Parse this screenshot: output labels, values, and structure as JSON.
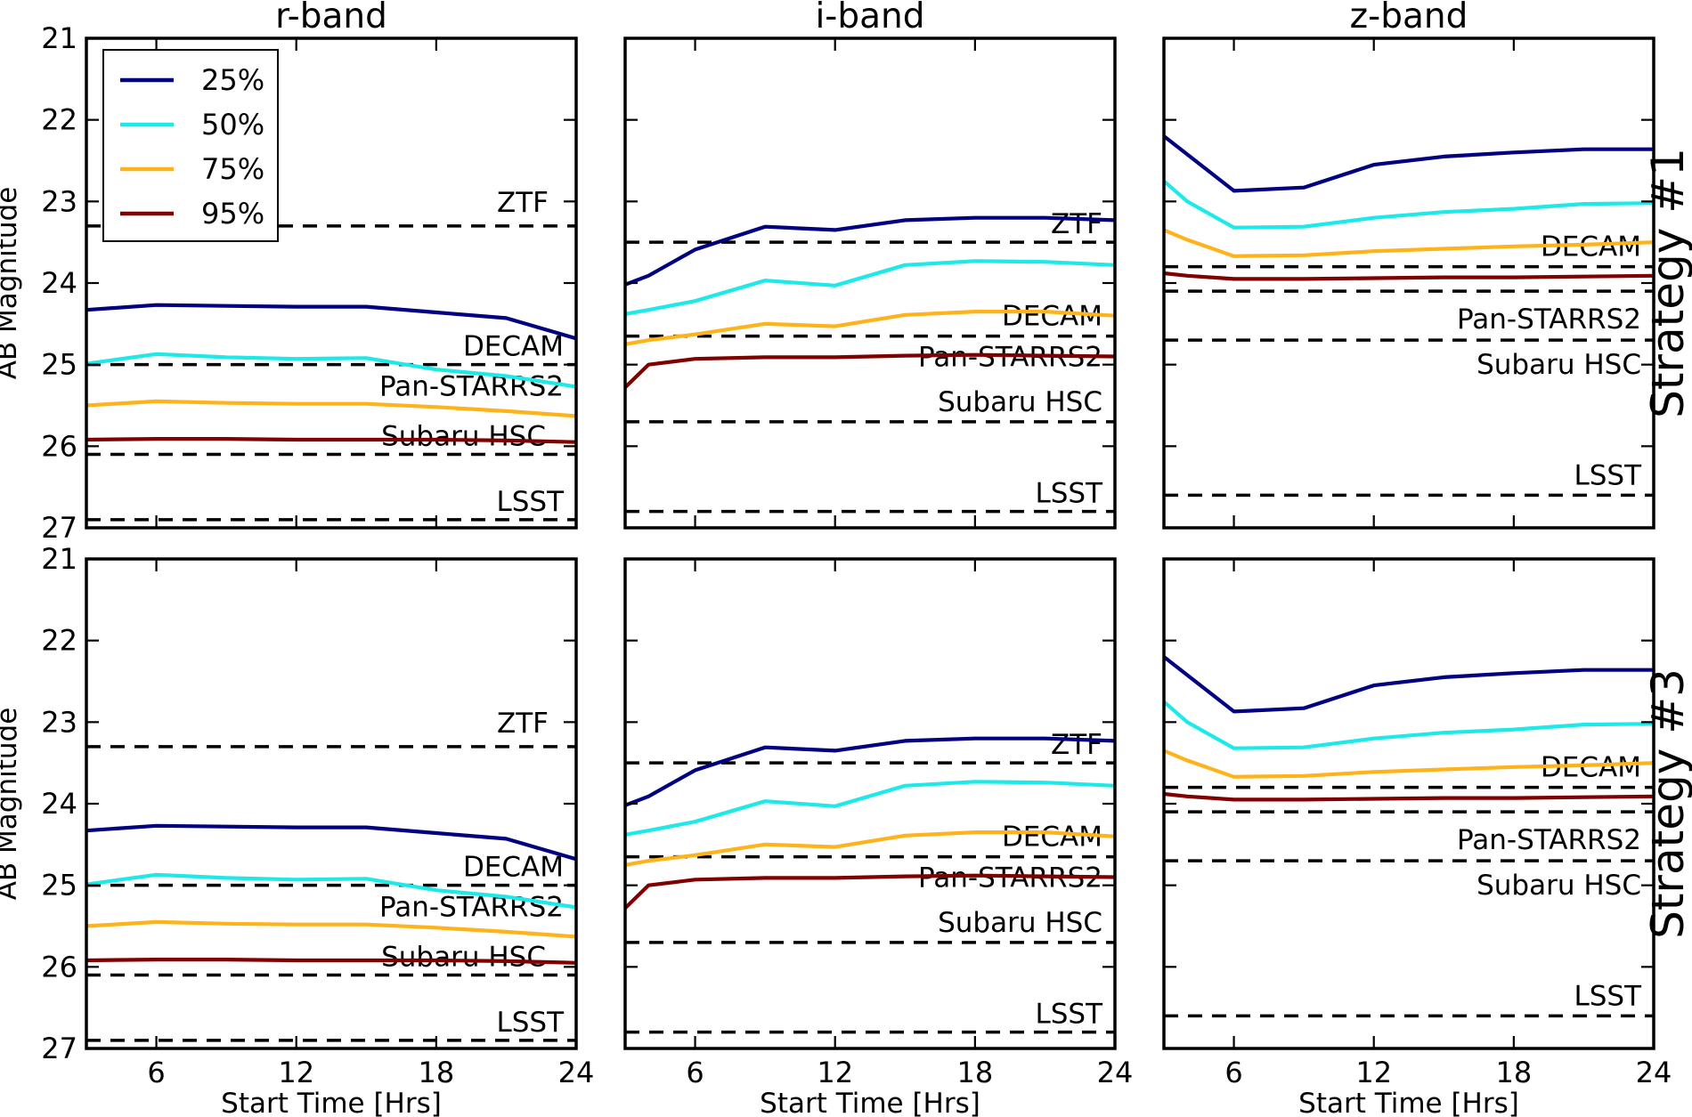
{
  "chart_data": {
    "type": "line",
    "x_unit_label": "Start Time [Hrs]",
    "y_label": "AB Magnitude",
    "xlim": [
      3,
      24
    ],
    "ylim": [
      21,
      27
    ],
    "y_inverted": true,
    "xticks": [
      6,
      12,
      18,
      24
    ],
    "yticks": [
      21,
      22,
      23,
      24,
      25,
      26,
      27
    ],
    "grid": false,
    "legend_placement": "top-left of first panel",
    "series_meta": [
      {
        "name": "25%",
        "color": "#000080"
      },
      {
        "name": "50%",
        "color": "#1de9e9"
      },
      {
        "name": "75%",
        "color": "#ffb31a"
      },
      {
        "name": "95%",
        "color": "#800000"
      }
    ],
    "columns": [
      "r-band",
      "i-band",
      "z-band"
    ],
    "rows": [
      "Strategy #1",
      "Strategy #3"
    ],
    "panels": [
      {
        "band": "r-band",
        "strategy": "Strategy #1",
        "series": [
          {
            "x": [
              3,
              6,
              9,
              12,
              15,
              18,
              21,
              24
            ],
            "y": [
              24.33,
              24.27,
              24.28,
              24.29,
              24.29,
              24.36,
              24.43,
              24.68
            ]
          },
          {
            "x": [
              3,
              6,
              9,
              12,
              15,
              18,
              21,
              24
            ],
            "y": [
              24.99,
              24.87,
              24.91,
              24.93,
              24.92,
              25.06,
              25.14,
              25.27
            ]
          },
          {
            "x": [
              3,
              6,
              9,
              12,
              15,
              18,
              21,
              24
            ],
            "y": [
              25.5,
              25.45,
              25.47,
              25.48,
              25.48,
              25.52,
              25.57,
              25.63
            ]
          },
          {
            "x": [
              3,
              6,
              9,
              12,
              15,
              18,
              21,
              24
            ],
            "y": [
              25.92,
              25.91,
              25.91,
              25.92,
              25.92,
              25.92,
              25.93,
              25.95
            ]
          }
        ],
        "reference_lines": [
          {
            "label": "ZTF",
            "y": 23.3
          },
          {
            "label": "DECAM",
            "y": 25.0
          },
          {
            "label": "Pan-STARRS2",
            "y": 25.0,
            "label_only": true
          },
          {
            "label": "Subaru HSC",
            "y": 26.1
          },
          {
            "label": "LSST",
            "y": 26.9
          }
        ]
      },
      {
        "band": "i-band",
        "strategy": "Strategy #1",
        "series": [
          {
            "x": [
              3,
              4,
              6,
              9,
              12,
              15,
              18,
              21,
              24
            ],
            "y": [
              24.02,
              23.91,
              23.59,
              23.31,
              23.35,
              23.23,
              23.2,
              23.2,
              23.23
            ]
          },
          {
            "x": [
              3,
              4,
              6,
              9,
              12,
              15,
              18,
              21,
              24
            ],
            "y": [
              24.38,
              24.33,
              24.22,
              23.97,
              24.03,
              23.78,
              23.73,
              23.74,
              23.78
            ]
          },
          {
            "x": [
              3,
              4,
              6,
              9,
              12,
              15,
              18,
              21,
              24
            ],
            "y": [
              24.75,
              24.7,
              24.63,
              24.5,
              24.53,
              24.39,
              24.35,
              24.35,
              24.4
            ]
          },
          {
            "x": [
              3,
              4,
              6,
              9,
              12,
              15,
              18,
              21,
              24
            ],
            "y": [
              25.28,
              25.0,
              24.93,
              24.91,
              24.91,
              24.89,
              24.88,
              24.89,
              24.9
            ]
          }
        ],
        "reference_lines": [
          {
            "label": "ZTF",
            "y": 23.5
          },
          {
            "label": "DECAM",
            "y": 24.65
          },
          {
            "label": "Pan-STARRS2",
            "y": 24.65,
            "label_only": true
          },
          {
            "label": "Subaru HSC",
            "y": 25.7
          },
          {
            "label": "LSST",
            "y": 26.8
          }
        ]
      },
      {
        "band": "z-band",
        "strategy": "Strategy #1",
        "series": [
          {
            "x": [
              3,
              6,
              9,
              12,
              15,
              18,
              21,
              24
            ],
            "y": [
              22.2,
              22.87,
              22.83,
              22.55,
              22.45,
              22.4,
              22.36,
              22.36
            ]
          },
          {
            "x": [
              3,
              4,
              6,
              9,
              12,
              15,
              18,
              21,
              24
            ],
            "y": [
              22.75,
              23.0,
              23.32,
              23.31,
              23.2,
              23.13,
              23.09,
              23.03,
              23.02
            ]
          },
          {
            "x": [
              3,
              4,
              6,
              9,
              12,
              15,
              18,
              21,
              24
            ],
            "y": [
              23.35,
              23.47,
              23.67,
              23.66,
              23.61,
              23.58,
              23.55,
              23.53,
              23.5
            ]
          },
          {
            "x": [
              3,
              4,
              6,
              9,
              12,
              15,
              18,
              21,
              24
            ],
            "y": [
              23.88,
              23.91,
              23.95,
              23.95,
              23.94,
              23.93,
              23.93,
              23.92,
              23.91
            ]
          }
        ],
        "reference_lines": [
          {
            "label": "DECAM",
            "y": 23.8
          },
          {
            "label": "Pan-STARRS2",
            "y": 24.1
          },
          {
            "label": "Subaru HSC",
            "y": 24.7
          },
          {
            "label": "LSST",
            "y": 26.6
          }
        ]
      },
      {
        "band": "r-band",
        "strategy": "Strategy #3",
        "series": [
          {
            "x": [
              3,
              6,
              9,
              12,
              15,
              18,
              21,
              24
            ],
            "y": [
              24.33,
              24.27,
              24.28,
              24.29,
              24.29,
              24.36,
              24.43,
              24.68
            ]
          },
          {
            "x": [
              3,
              6,
              9,
              12,
              15,
              18,
              21,
              24
            ],
            "y": [
              24.99,
              24.87,
              24.91,
              24.93,
              24.92,
              25.06,
              25.14,
              25.27
            ]
          },
          {
            "x": [
              3,
              6,
              9,
              12,
              15,
              18,
              21,
              24
            ],
            "y": [
              25.5,
              25.45,
              25.47,
              25.48,
              25.48,
              25.52,
              25.57,
              25.63
            ]
          },
          {
            "x": [
              3,
              6,
              9,
              12,
              15,
              18,
              21,
              24
            ],
            "y": [
              25.92,
              25.91,
              25.91,
              25.92,
              25.92,
              25.92,
              25.93,
              25.95
            ]
          }
        ],
        "reference_lines": [
          {
            "label": "ZTF",
            "y": 23.3
          },
          {
            "label": "DECAM",
            "y": 25.0
          },
          {
            "label": "Pan-STARRS2",
            "y": 25.0,
            "label_only": true
          },
          {
            "label": "Subaru HSC",
            "y": 26.1
          },
          {
            "label": "LSST",
            "y": 26.9
          }
        ]
      },
      {
        "band": "i-band",
        "strategy": "Strategy #3",
        "series": [
          {
            "x": [
              3,
              4,
              6,
              9,
              12,
              15,
              18,
              21,
              24
            ],
            "y": [
              24.02,
              23.91,
              23.59,
              23.31,
              23.35,
              23.23,
              23.2,
              23.2,
              23.23
            ]
          },
          {
            "x": [
              3,
              4,
              6,
              9,
              12,
              15,
              18,
              21,
              24
            ],
            "y": [
              24.38,
              24.33,
              24.22,
              23.97,
              24.03,
              23.78,
              23.73,
              23.74,
              23.78
            ]
          },
          {
            "x": [
              3,
              4,
              6,
              9,
              12,
              15,
              18,
              21,
              24
            ],
            "y": [
              24.75,
              24.7,
              24.63,
              24.5,
              24.53,
              24.39,
              24.35,
              24.35,
              24.4
            ]
          },
          {
            "x": [
              3,
              4,
              6,
              9,
              12,
              15,
              18,
              21,
              24
            ],
            "y": [
              25.28,
              25.0,
              24.93,
              24.91,
              24.91,
              24.89,
              24.88,
              24.89,
              24.9
            ]
          }
        ],
        "reference_lines": [
          {
            "label": "ZTF",
            "y": 23.5
          },
          {
            "label": "DECAM",
            "y": 24.65
          },
          {
            "label": "Pan-STARRS2",
            "y": 24.65,
            "label_only": true
          },
          {
            "label": "Subaru HSC",
            "y": 25.7
          },
          {
            "label": "LSST",
            "y": 26.8
          }
        ]
      },
      {
        "band": "z-band",
        "strategy": "Strategy #3",
        "series": [
          {
            "x": [
              3,
              6,
              9,
              12,
              15,
              18,
              21,
              24
            ],
            "y": [
              22.2,
              22.87,
              22.83,
              22.55,
              22.45,
              22.4,
              22.36,
              22.36
            ]
          },
          {
            "x": [
              3,
              4,
              6,
              9,
              12,
              15,
              18,
              21,
              24
            ],
            "y": [
              22.75,
              23.0,
              23.32,
              23.31,
              23.2,
              23.13,
              23.09,
              23.03,
              23.02
            ]
          },
          {
            "x": [
              3,
              4,
              6,
              9,
              12,
              15,
              18,
              21,
              24
            ],
            "y": [
              23.35,
              23.47,
              23.67,
              23.66,
              23.61,
              23.58,
              23.55,
              23.53,
              23.5
            ]
          },
          {
            "x": [
              3,
              4,
              6,
              9,
              12,
              15,
              18,
              21,
              24
            ],
            "y": [
              23.88,
              23.91,
              23.95,
              23.95,
              23.94,
              23.93,
              23.93,
              23.92,
              23.91
            ]
          }
        ],
        "reference_lines": [
          {
            "label": "DECAM",
            "y": 23.8
          },
          {
            "label": "Pan-STARRS2",
            "y": 24.1
          },
          {
            "label": "Subaru HSC",
            "y": 24.7
          },
          {
            "label": "LSST",
            "y": 26.6
          }
        ]
      }
    ]
  }
}
